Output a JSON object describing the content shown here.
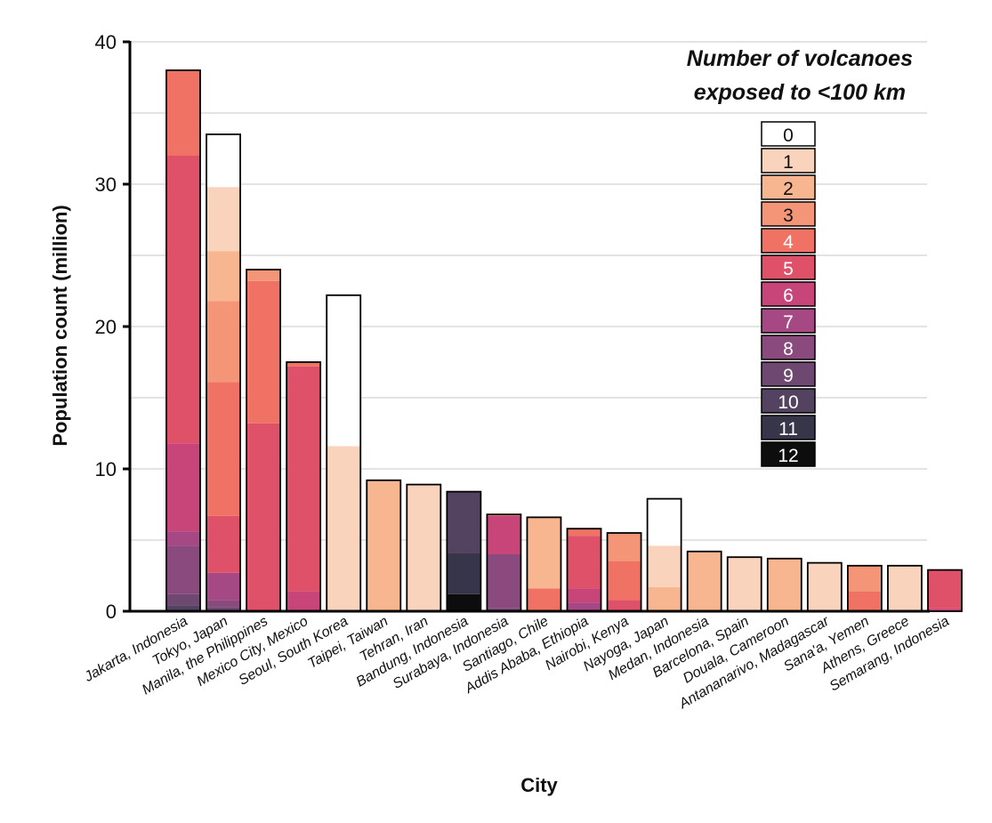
{
  "chart_data": {
    "type": "bar",
    "title": "",
    "xlabel": "City",
    "ylabel": "Population count (million)",
    "ylim": [
      0,
      40
    ],
    "yticks": [
      0,
      10,
      20,
      30,
      40
    ],
    "grid": true,
    "stacked": true,
    "legend": {
      "title_lines": [
        "Number of volcanoes",
        "exposed to <100 km"
      ],
      "placement": "top-right",
      "entries": [
        {
          "label": "0",
          "color": "#ffffff",
          "text_color": "#111111"
        },
        {
          "label": "1",
          "color": "#f9d3bb",
          "text_color": "#111111"
        },
        {
          "label": "2",
          "color": "#f7b690",
          "text_color": "#111111"
        },
        {
          "label": "3",
          "color": "#f59577",
          "text_color": "#111111"
        },
        {
          "label": "4",
          "color": "#ef7264",
          "text_color": "#ffffff"
        },
        {
          "label": "5",
          "color": "#df5069",
          "text_color": "#ffffff"
        },
        {
          "label": "6",
          "color": "#c8457a",
          "text_color": "#ffffff"
        },
        {
          "label": "7",
          "color": "#a64883",
          "text_color": "#ffffff"
        },
        {
          "label": "8",
          "color": "#8a4a7e",
          "text_color": "#ffffff"
        },
        {
          "label": "9",
          "color": "#6e4870",
          "text_color": "#ffffff"
        },
        {
          "label": "10",
          "color": "#544360",
          "text_color": "#ffffff"
        },
        {
          "label": "11",
          "color": "#37354a",
          "text_color": "#ffffff"
        },
        {
          "label": "12",
          "color": "#0d0d0d",
          "text_color": "#ffffff"
        }
      ]
    },
    "categories": [
      "Jakarta, Indonesia",
      "Tokyo, Japan",
      "Manila, the Philippines",
      "Mexico City, Mexico",
      "Seoul, South Korea",
      "Taipei, Taiwan",
      "Tehran, Iran",
      "Bandung, Indonesia",
      "Surabaya, Indonesia",
      "Santiago, Chile",
      "Addis Ababa, Ethiopia",
      "Nairobi, Kenya",
      "Nayoga, Japan",
      "Medan, Indonesia",
      "Barcelona, Spain",
      "Douala, Cameroon",
      "Antananarivo, Madagascar",
      "Sana'a, Yemen",
      "Athens, Greece",
      "Semarang, Indonesia"
    ],
    "totals": [
      38.0,
      33.5,
      24.0,
      17.5,
      22.2,
      9.2,
      8.9,
      8.4,
      6.8,
      6.6,
      5.8,
      5.5,
      7.9,
      4.2,
      3.8,
      3.7,
      3.4,
      3.2,
      3.2,
      2.9
    ],
    "segments": [
      [
        {
          "n": 10,
          "v": 0.4
        },
        {
          "n": 9,
          "v": 0.8
        },
        {
          "n": 8,
          "v": 3.4
        },
        {
          "n": 7,
          "v": 1.0
        },
        {
          "n": 6,
          "v": 6.2
        },
        {
          "n": 5,
          "v": 20.2
        },
        {
          "n": 4,
          "v": 6.0
        }
      ],
      [
        {
          "n": 9,
          "v": 0.3
        },
        {
          "n": 8,
          "v": 0.5
        },
        {
          "n": 7,
          "v": 1.9
        },
        {
          "n": 5,
          "v": 4.0
        },
        {
          "n": 4,
          "v": 9.4
        },
        {
          "n": 3,
          "v": 5.7
        },
        {
          "n": 2,
          "v": 3.5
        },
        {
          "n": 1,
          "v": 4.5
        },
        {
          "n": 0,
          "v": 3.7
        }
      ],
      [
        {
          "n": 5,
          "v": 13.2
        },
        {
          "n": 4,
          "v": 10.0
        },
        {
          "n": 3,
          "v": 0.8
        }
      ],
      [
        {
          "n": 6,
          "v": 1.4
        },
        {
          "n": 5,
          "v": 15.8
        },
        {
          "n": 4,
          "v": 0.3
        }
      ],
      [
        {
          "n": 1,
          "v": 11.6
        },
        {
          "n": 0,
          "v": 10.6
        }
      ],
      [
        {
          "n": 2,
          "v": 9.2
        }
      ],
      [
        {
          "n": 1,
          "v": 8.9
        }
      ],
      [
        {
          "n": 12,
          "v": 1.2
        },
        {
          "n": 11,
          "v": 2.9
        },
        {
          "n": 10,
          "v": 4.3
        }
      ],
      [
        {
          "n": 9,
          "v": 0.2
        },
        {
          "n": 8,
          "v": 3.8
        },
        {
          "n": 6,
          "v": 2.7
        },
        {
          "n": 4,
          "v": 0.1
        }
      ],
      [
        {
          "n": 4,
          "v": 1.6
        },
        {
          "n": 2,
          "v": 5.0
        }
      ],
      [
        {
          "n": 7,
          "v": 0.6
        },
        {
          "n": 6,
          "v": 1.0
        },
        {
          "n": 5,
          "v": 3.7
        },
        {
          "n": 4,
          "v": 0.5
        }
      ],
      [
        {
          "n": 5,
          "v": 0.8
        },
        {
          "n": 4,
          "v": 2.7
        },
        {
          "n": 3,
          "v": 2.0
        }
      ],
      [
        {
          "n": 2,
          "v": 1.7
        },
        {
          "n": 1,
          "v": 2.9
        },
        {
          "n": 0,
          "v": 3.3
        }
      ],
      [
        {
          "n": 2,
          "v": 4.2
        }
      ],
      [
        {
          "n": 1,
          "v": 3.8
        }
      ],
      [
        {
          "n": 2,
          "v": 3.7
        }
      ],
      [
        {
          "n": 1,
          "v": 3.4
        }
      ],
      [
        {
          "n": 4,
          "v": 1.4
        },
        {
          "n": 3,
          "v": 1.8
        }
      ],
      [
        {
          "n": 1,
          "v": 3.2
        }
      ],
      [
        {
          "n": 6,
          "v": 0.2
        },
        {
          "n": 5,
          "v": 2.7
        }
      ]
    ]
  }
}
